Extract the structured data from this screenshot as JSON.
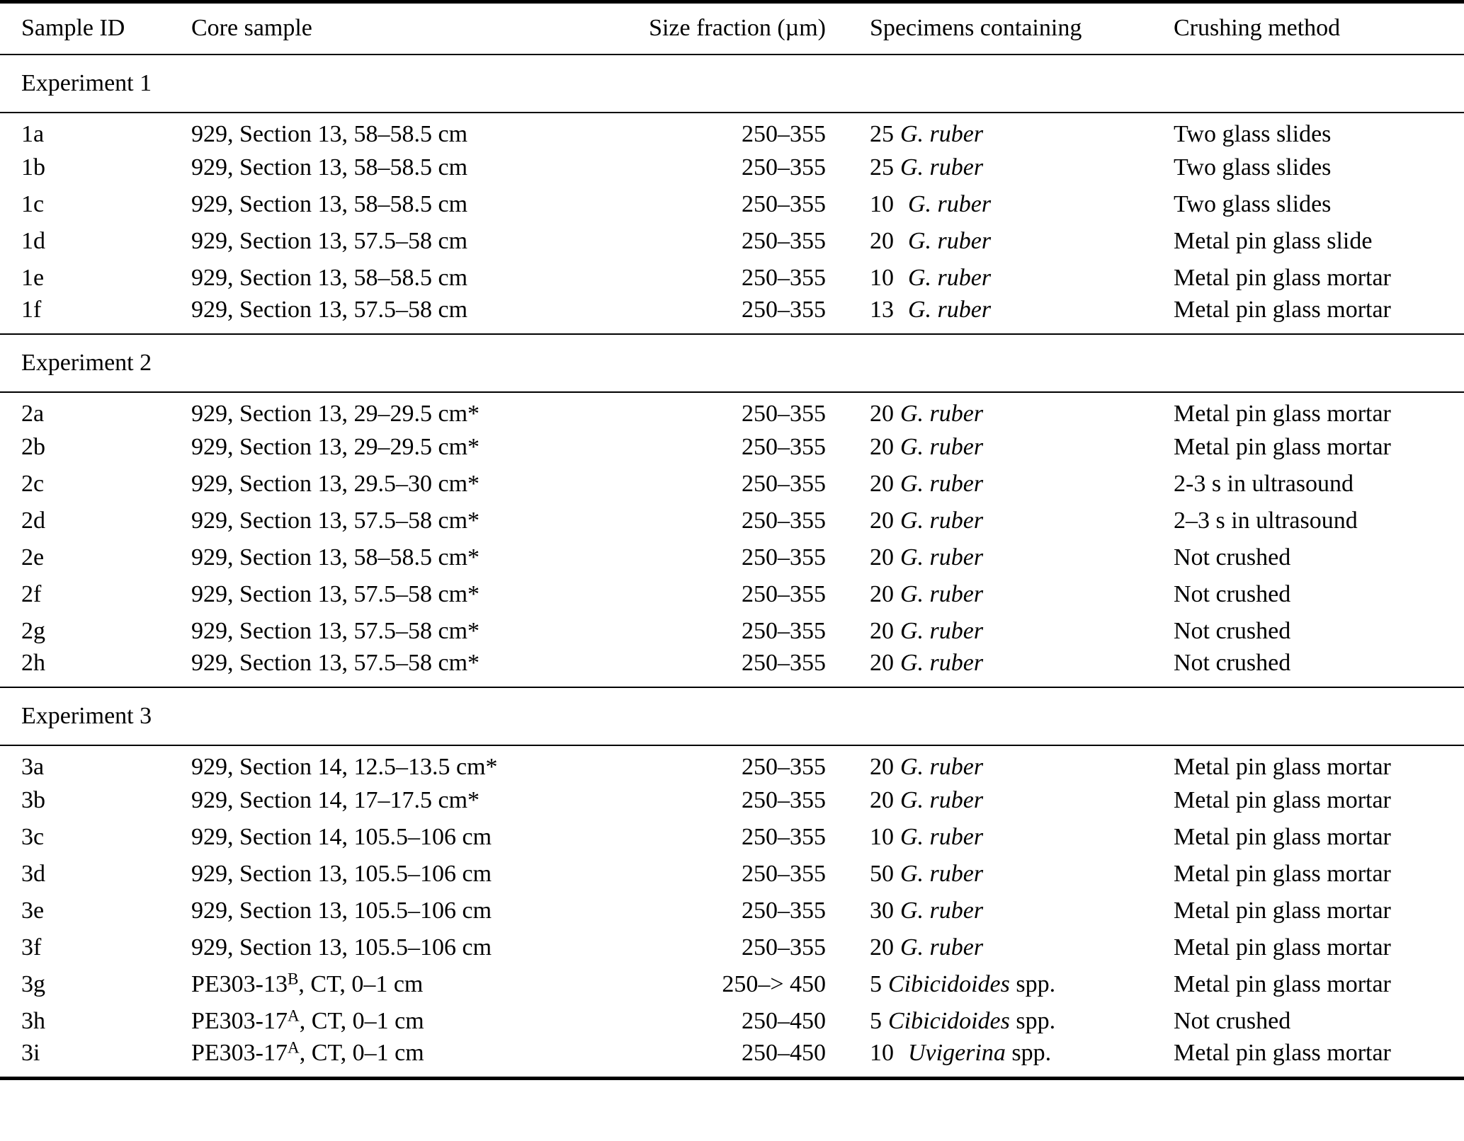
{
  "table": {
    "columns": [
      "Sample ID",
      "Core sample",
      "Size fraction (µm)",
      "Specimens containing",
      "Crushing method"
    ],
    "sections": [
      {
        "title": "Experiment 1",
        "rows": [
          {
            "id": "1a",
            "core": "929, Section 13, 58–58.5 cm",
            "sup": "",
            "core2": "",
            "size": "250–355",
            "count": "25",
            "gap": "n",
            "species": "G. ruber",
            "species2": "",
            "method": "Two glass slides"
          },
          {
            "id": "1b",
            "core": "929, Section 13, 58–58.5 cm",
            "sup": "",
            "core2": "",
            "size": "250–355",
            "count": "25",
            "gap": "n",
            "species": "G. ruber",
            "species2": "",
            "method": "Two glass slides"
          },
          {
            "id": "1c",
            "core": "929, Section 13, 58–58.5 cm",
            "sup": "",
            "core2": "",
            "size": "250–355",
            "count": "10",
            "gap": "w",
            "species": "G. ruber",
            "species2": "",
            "method": "Two glass slides"
          },
          {
            "id": "1d",
            "core": "929, Section 13, 57.5–58 cm",
            "sup": "",
            "core2": "",
            "size": "250–355",
            "count": "20",
            "gap": "w",
            "species": "G. ruber",
            "species2": "",
            "method": "Metal pin glass slide"
          },
          {
            "id": "1e",
            "core": "929, Section 13, 58–58.5 cm",
            "sup": "",
            "core2": "",
            "size": "250–355",
            "count": "10",
            "gap": "w",
            "species": "G. ruber",
            "species2": "",
            "method": "Metal pin glass mortar"
          },
          {
            "id": "1f",
            "core": "929, Section 13, 57.5–58 cm",
            "sup": "",
            "core2": "",
            "size": "250–355",
            "count": "13",
            "gap": "w",
            "species": "G. ruber",
            "species2": "",
            "method": "Metal pin glass mortar"
          }
        ]
      },
      {
        "title": "Experiment 2",
        "rows": [
          {
            "id": "2a",
            "core": "929, Section 13, 29–29.5 cm*",
            "sup": "",
            "core2": "",
            "size": "250–355",
            "count": "20",
            "gap": "n",
            "species": "G. ruber",
            "species2": "",
            "method": "Metal pin glass mortar"
          },
          {
            "id": "2b",
            "core": "929, Section 13, 29–29.5 cm*",
            "sup": "",
            "core2": "",
            "size": "250–355",
            "count": "20",
            "gap": "n",
            "species": "G. ruber",
            "species2": "",
            "method": "Metal pin glass mortar"
          },
          {
            "id": "2c",
            "core": "929, Section 13, 29.5–30 cm*",
            "sup": "",
            "core2": "",
            "size": "250–355",
            "count": "20",
            "gap": "n",
            "species": "G. ruber",
            "species2": "",
            "method": "2-3 s in ultrasound"
          },
          {
            "id": "2d",
            "core": "929, Section 13, 57.5–58 cm*",
            "sup": "",
            "core2": "",
            "size": "250–355",
            "count": "20",
            "gap": "n",
            "species": "G. ruber",
            "species2": "",
            "method": "2–3 s in ultrasound"
          },
          {
            "id": "2e",
            "core": "929, Section 13, 58–58.5 cm*",
            "sup": "",
            "core2": "",
            "size": "250–355",
            "count": "20",
            "gap": "n",
            "species": "G. ruber",
            "species2": "",
            "method": "Not crushed"
          },
          {
            "id": "2f",
            "core": "929, Section 13, 57.5–58 cm*",
            "sup": "",
            "core2": "",
            "size": "250–355",
            "count": "20",
            "gap": "n",
            "species": "G. ruber",
            "species2": "",
            "method": "Not crushed"
          },
          {
            "id": "2g",
            "core": "929, Section 13, 57.5–58 cm*",
            "sup": "",
            "core2": "",
            "size": "250–355",
            "count": "20",
            "gap": "n",
            "species": "G. ruber",
            "species2": "",
            "method": "Not crushed"
          },
          {
            "id": "2h",
            "core": "929, Section 13, 57.5–58 cm*",
            "sup": "",
            "core2": "",
            "size": "250–355",
            "count": "20",
            "gap": "n",
            "species": "G. ruber",
            "species2": "",
            "method": "Not crushed"
          }
        ]
      },
      {
        "title": "Experiment 3",
        "rows": [
          {
            "id": "3a",
            "core": "929, Section 14, 12.5–13.5 cm*",
            "sup": "",
            "core2": "",
            "size": "250–355",
            "count": "20",
            "gap": "n",
            "species": "G. ruber",
            "species2": "",
            "method": "Metal pin glass mortar"
          },
          {
            "id": "3b",
            "core": "929, Section 14, 17–17.5 cm*",
            "sup": "",
            "core2": "",
            "size": "250–355",
            "count": "20",
            "gap": "n",
            "species": "G. ruber",
            "species2": "",
            "method": "Metal pin glass mortar"
          },
          {
            "id": "3c",
            "core": "929, Section 14, 105.5–106 cm",
            "sup": "",
            "core2": "",
            "size": "250–355",
            "count": "10",
            "gap": "n",
            "species": "G. ruber",
            "species2": "",
            "method": "Metal pin glass mortar"
          },
          {
            "id": "3d",
            "core": "929, Section 13, 105.5–106 cm",
            "sup": "",
            "core2": "",
            "size": "250–355",
            "count": "50",
            "gap": "n",
            "species": "G. ruber",
            "species2": "",
            "method": "Metal pin glass mortar"
          },
          {
            "id": "3e",
            "core": "929, Section 13, 105.5–106 cm",
            "sup": "",
            "core2": "",
            "size": "250–355",
            "count": "30",
            "gap": "n",
            "species": "G. ruber",
            "species2": "",
            "method": "Metal pin glass mortar"
          },
          {
            "id": "3f",
            "core": "929, Section 13, 105.5–106 cm",
            "sup": "",
            "core2": "",
            "size": "250–355",
            "count": "20",
            "gap": "n",
            "species": "G. ruber",
            "species2": "",
            "method": "Metal pin glass mortar"
          },
          {
            "id": "3g",
            "core": "PE303-13",
            "sup": "B",
            "core2": ", CT, 0–1 cm",
            "size": "250–> 450",
            "count": "5",
            "gap": "n",
            "species": "Cibicidoides",
            "species2": " spp.",
            "method": "Metal pin glass mortar"
          },
          {
            "id": "3h",
            "core": "PE303-17",
            "sup": "A",
            "core2": ", CT, 0–1 cm",
            "size": "250–450",
            "count": "5",
            "gap": "n",
            "species": "Cibicidoides",
            "species2": " spp.",
            "method": "Not crushed"
          },
          {
            "id": "3i",
            "core": "PE303-17",
            "sup": "A",
            "core2": ", CT, 0–1 cm",
            "size": "250–450",
            "count": "10",
            "gap": "w",
            "species": "Uvigerina",
            "species2": " spp.",
            "method": "Metal pin glass mortar"
          }
        ]
      }
    ]
  }
}
